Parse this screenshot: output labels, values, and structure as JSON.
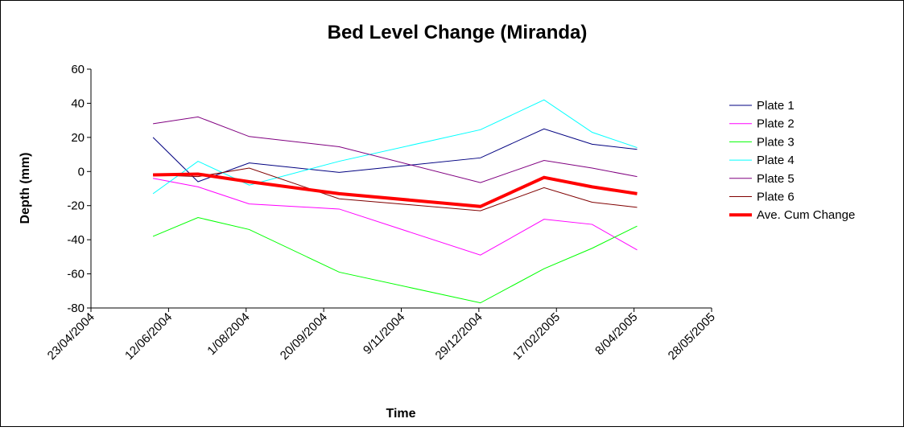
{
  "chart_data": {
    "type": "line",
    "title": "Bed Level Change (Miranda)",
    "x_label": "Time",
    "y_label": "Depth (mm)",
    "x": [
      "2004-06-02",
      "2004-07-01",
      "2004-08-03",
      "2004-09-30",
      "2004-12-30",
      "2005-02-09",
      "2005-03-12",
      "2005-04-10"
    ],
    "series": [
      {
        "name": "Plate 1",
        "color": "#000080",
        "width": 1,
        "values": [
          20,
          -6,
          5,
          -0.5,
          8,
          25,
          16,
          13
        ]
      },
      {
        "name": "Plate 2",
        "color": "#ff00ff",
        "width": 1,
        "values": [
          -4,
          -9,
          -19,
          -22,
          -49,
          -28,
          -31,
          -46
        ]
      },
      {
        "name": "Plate 3",
        "color": "#00ff00",
        "width": 1,
        "values": [
          -38,
          -27,
          -34,
          -59,
          -77,
          -57,
          -45,
          -32
        ]
      },
      {
        "name": "Plate 4",
        "color": "#00ffff",
        "width": 1,
        "values": [
          -13,
          6,
          -8,
          6,
          24.5,
          42,
          23,
          14
        ]
      },
      {
        "name": "Plate 5",
        "color": "#800080",
        "width": 1,
        "values": [
          28,
          32,
          20.5,
          14.5,
          -6.5,
          6.5,
          2,
          -3
        ]
      },
      {
        "name": "Plate 6",
        "color": "#800000",
        "width": 1,
        "values": [
          -2,
          -3,
          2,
          -16,
          -23,
          -9.5,
          -18,
          -21
        ]
      },
      {
        "name": "Ave. Cum Change",
        "color": "#ff0000",
        "width": 4,
        "values": [
          -2,
          -1.5,
          -6,
          -13,
          -20.5,
          -3.5,
          -9,
          -13
        ]
      }
    ],
    "xlim": [
      "2004-04-23",
      "2005-05-28"
    ],
    "xticks": [
      {
        "value": "2004-04-23",
        "label": "23/04/2004"
      },
      {
        "value": "2004-06-12",
        "label": "12/06/2004"
      },
      {
        "value": "2004-08-01",
        "label": "1/08/2004"
      },
      {
        "value": "2004-09-20",
        "label": "20/09/2004"
      },
      {
        "value": "2004-11-09",
        "label": "9/11/2004"
      },
      {
        "value": "2004-12-29",
        "label": "29/12/2004"
      },
      {
        "value": "2005-02-17",
        "label": "17/02/2005"
      },
      {
        "value": "2005-04-08",
        "label": "8/04/2005"
      },
      {
        "value": "2005-05-28",
        "label": "28/05/2005"
      }
    ],
    "ylim": [
      -80,
      60
    ],
    "yticks": [
      -80,
      -60,
      -40,
      -20,
      0,
      20,
      40,
      60
    ],
    "legend": "right"
  }
}
